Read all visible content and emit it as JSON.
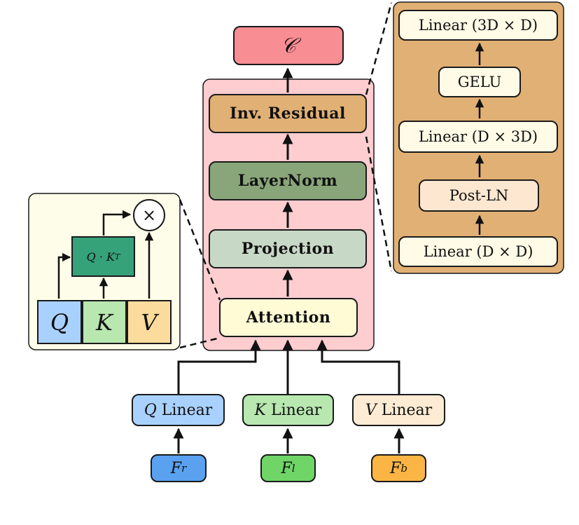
{
  "output": {
    "label": "𝒞",
    "color": "#f88d93"
  },
  "block": {
    "inv_residual": {
      "label": "Inv. Residual",
      "color": "#e1b074"
    },
    "layernorm": {
      "label": "LayerNorm",
      "color": "#89a67a"
    },
    "projection": {
      "label": "Projection",
      "color": "#c8d8c6"
    },
    "attention": {
      "label": "Attention",
      "color": "#fffbd5"
    },
    "background": "#fdcdd0"
  },
  "inputs": {
    "q_linear": {
      "symbol": "Q",
      "label": "Linear",
      "color": "#a9d1ff"
    },
    "k_linear": {
      "symbol": "K",
      "label": "Linear",
      "color": "#b8e7b0"
    },
    "v_linear": {
      "symbol": "V",
      "label": "Linear",
      "color": "#fdebd3"
    },
    "f_r": {
      "symbol": "F",
      "sub": "r",
      "color": "#5aa1ef"
    },
    "f_l": {
      "symbol": "F",
      "sub": "l",
      "color": "#6fd567"
    },
    "f_b": {
      "symbol": "F",
      "sub": "b",
      "color": "#fbb544"
    }
  },
  "attention_detail": {
    "q": {
      "label": "Q",
      "color": "#a9d1ff"
    },
    "k": {
      "label": "K",
      "color": "#b8e7b0"
    },
    "v": {
      "label": "V",
      "color": "#fbdc9c"
    },
    "qk": {
      "label": "Q · K",
      "sup": "T",
      "color": "#36a27a"
    },
    "multiply": "×",
    "background": "#fefde9"
  },
  "residual_detail": {
    "linear_3d_d": {
      "label": "Linear (3D × D)"
    },
    "gelu": {
      "label": "GELU"
    },
    "linear_d_3d": {
      "label": "Linear (D × 3D)"
    },
    "post_ln": {
      "label": "Post-LN",
      "color": "#fde7d1"
    },
    "linear_d_d": {
      "label": "Linear (D × D)"
    },
    "box_color": "#fffbe6",
    "background": "#e1b074"
  }
}
